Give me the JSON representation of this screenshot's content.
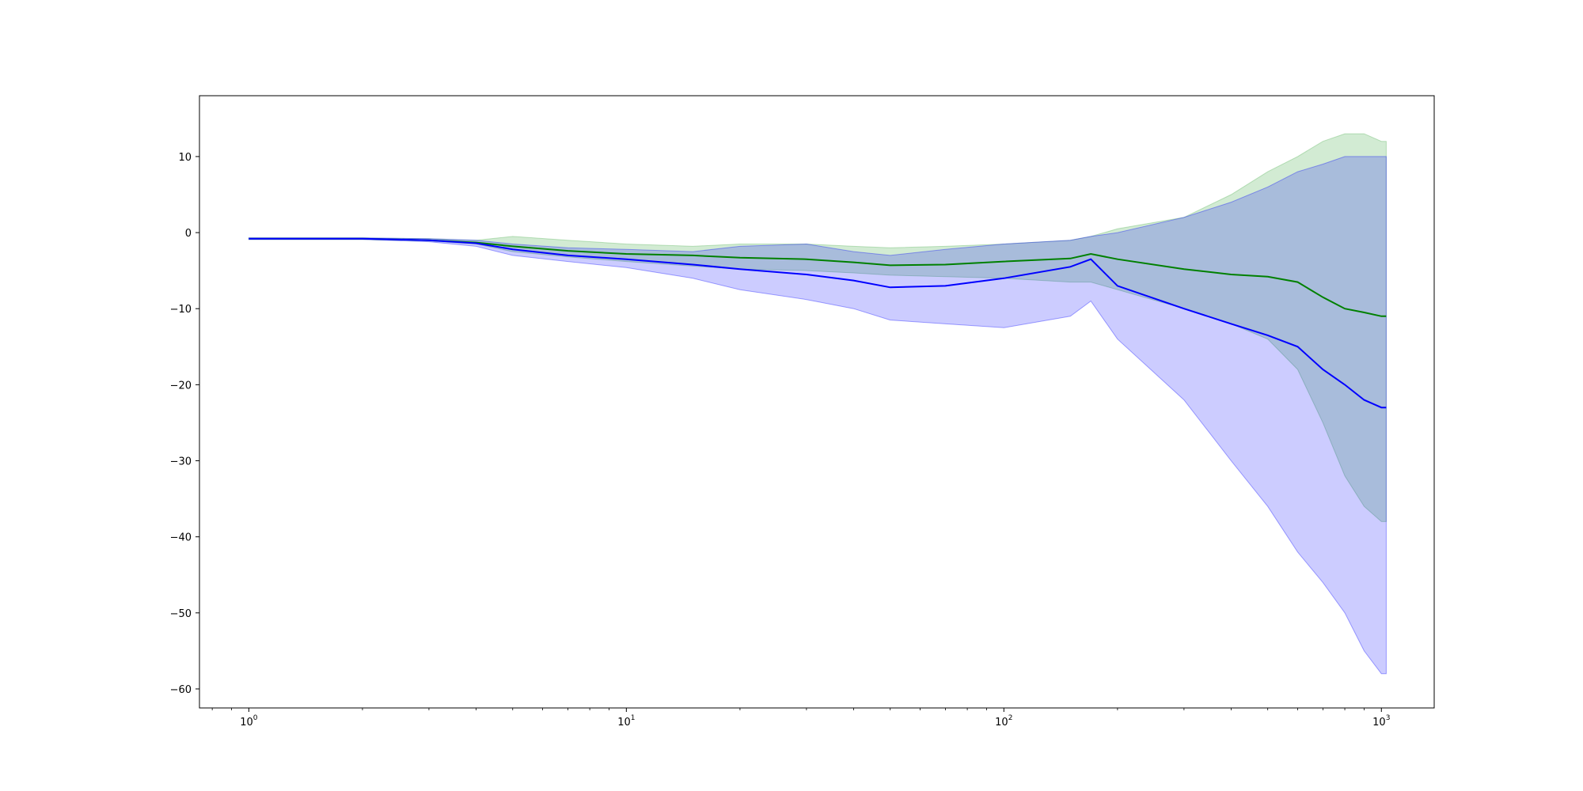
{
  "chart_data": {
    "type": "line",
    "title": "",
    "xlabel": "",
    "ylabel": "",
    "x_scale": "log",
    "xlim": [
      0.74,
      1380
    ],
    "ylim": [
      -62.5,
      18
    ],
    "grid": false,
    "legend": "none",
    "x_ticks": [
      {
        "value": 1,
        "base": "10",
        "exp": "0"
      },
      {
        "value": 10,
        "base": "10",
        "exp": "1"
      },
      {
        "value": 100,
        "base": "10",
        "exp": "2"
      },
      {
        "value": 1000,
        "base": "10",
        "exp": "3"
      }
    ],
    "y_ticks": [
      {
        "value": 10,
        "label": "10"
      },
      {
        "value": 0,
        "label": "0"
      },
      {
        "value": -10,
        "label": "−10"
      },
      {
        "value": -20,
        "label": "−20"
      },
      {
        "value": -30,
        "label": "−30"
      },
      {
        "value": -40,
        "label": "−40"
      },
      {
        "value": -50,
        "label": "−50"
      },
      {
        "value": -60,
        "label": "−60"
      }
    ],
    "series": [
      {
        "color": "#008000",
        "band_color": "#4caf50",
        "x": [
          1,
          2,
          3,
          4,
          5,
          7,
          10,
          15,
          20,
          30,
          40,
          50,
          70,
          100,
          150,
          170,
          200,
          300,
          400,
          500,
          600,
          700,
          800,
          900,
          1000,
          1030
        ],
        "y": [
          -0.8,
          -0.8,
          -1.0,
          -1.3,
          -1.8,
          -2.4,
          -2.8,
          -3.0,
          -3.3,
          -3.5,
          -3.9,
          -4.3,
          -4.2,
          -3.8,
          -3.4,
          -2.8,
          -3.5,
          -4.8,
          -5.5,
          -5.8,
          -6.5,
          -8.5,
          -10.0,
          -10.5,
          -11.0,
          -11.0
        ],
        "lower": [
          -0.9,
          -0.9,
          -1.1,
          -1.5,
          -2.5,
          -3.2,
          -3.8,
          -4.4,
          -4.8,
          -5.0,
          -5.3,
          -5.6,
          -5.8,
          -6.0,
          -6.5,
          -6.5,
          -7.5,
          -10.0,
          -12.0,
          -14.0,
          -18.0,
          -25.0,
          -32.0,
          -36.0,
          -38.0,
          -38.0
        ],
        "upper": [
          -0.7,
          -0.7,
          -0.8,
          -1.0,
          -0.5,
          -1.0,
          -1.5,
          -1.8,
          -1.5,
          -1.5,
          -1.8,
          -2.0,
          -1.8,
          -1.5,
          -1.0,
          -0.5,
          0.5,
          2.0,
          5.0,
          8.0,
          10.0,
          12.0,
          13.0,
          13.0,
          12.0,
          12.0
        ]
      },
      {
        "color": "#0000ff",
        "band_color": "#0000ff",
        "x": [
          1,
          2,
          3,
          4,
          5,
          7,
          10,
          15,
          20,
          30,
          40,
          50,
          70,
          100,
          150,
          170,
          200,
          300,
          400,
          500,
          600,
          700,
          800,
          900,
          1000,
          1030
        ],
        "y": [
          -0.8,
          -0.8,
          -1.0,
          -1.4,
          -2.2,
          -3.0,
          -3.5,
          -4.2,
          -4.8,
          -5.5,
          -6.3,
          -7.2,
          -7.0,
          -6.0,
          -4.5,
          -3.5,
          -7.0,
          -10.0,
          -12.0,
          -13.5,
          -15.0,
          -18.0,
          -20.0,
          -22.0,
          -23.0,
          -23.0
        ],
        "lower": [
          -0.9,
          -0.9,
          -1.2,
          -1.8,
          -3.0,
          -3.8,
          -4.6,
          -6.0,
          -7.5,
          -8.8,
          -10.0,
          -11.5,
          -12.0,
          -12.5,
          -11.0,
          -9.0,
          -14.0,
          -22.0,
          -30.0,
          -36.0,
          -42.0,
          -46.0,
          -50.0,
          -55.0,
          -58.0,
          -58.0
        ],
        "upper": [
          -0.7,
          -0.7,
          -0.8,
          -1.0,
          -1.5,
          -2.0,
          -2.2,
          -2.5,
          -1.8,
          -1.5,
          -2.5,
          -3.0,
          -2.2,
          -1.5,
          -1.0,
          -0.5,
          0.0,
          2.0,
          4.0,
          6.0,
          8.0,
          9.0,
          10.0,
          10.0,
          10.0,
          10.0
        ]
      }
    ]
  }
}
